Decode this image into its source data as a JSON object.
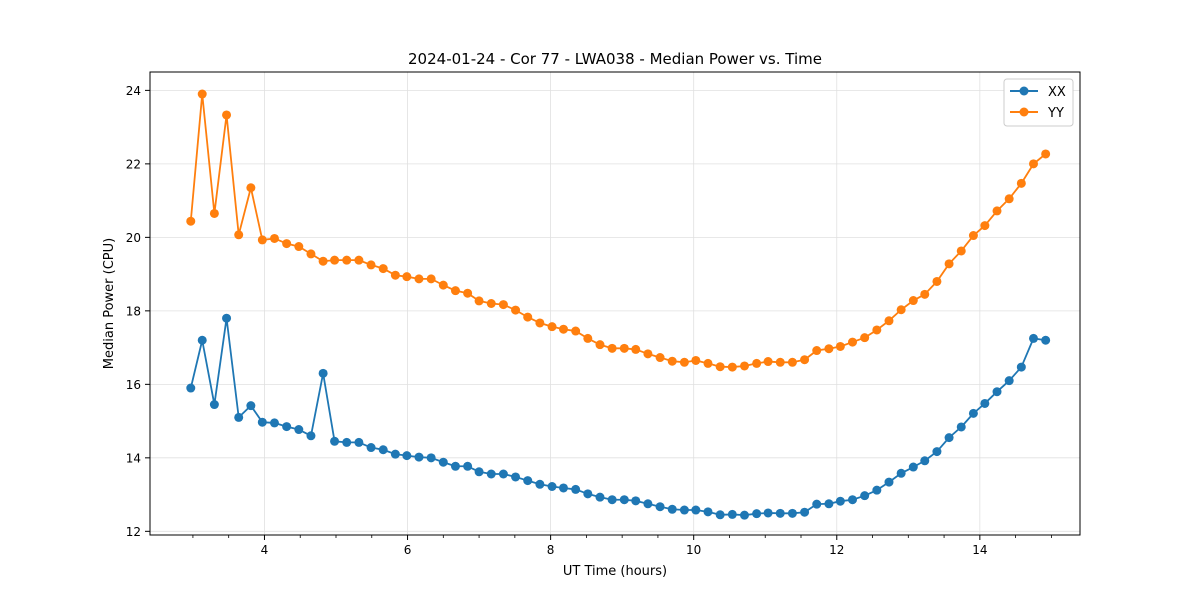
{
  "chart_data": {
    "type": "line",
    "title": "2024-01-24 - Cor 77 - LWA038 - Median Power vs. Time",
    "xlabel": "UT Time (hours)",
    "ylabel": "Median Power (CPU)",
    "xlim": [
      2.4,
      15.4
    ],
    "ylim": [
      11.9,
      24.5
    ],
    "xticks": [
      4,
      6,
      8,
      10,
      12,
      14
    ],
    "xtick_labels": [
      "4",
      "6",
      "8",
      "10",
      "12",
      "14"
    ],
    "yticks": [
      12,
      14,
      16,
      18,
      20,
      22,
      24
    ],
    "ytick_labels": [
      "12",
      "14",
      "16",
      "18",
      "20",
      "22",
      "24"
    ],
    "grid": true,
    "legend_position": "top-right",
    "x": [
      2.97,
      3.13,
      3.3,
      3.47,
      3.64,
      3.81,
      3.97,
      4.14,
      4.31,
      4.48,
      4.65,
      4.82,
      4.98,
      5.15,
      5.32,
      5.49,
      5.66,
      5.83,
      5.99,
      6.16,
      6.33,
      6.5,
      6.67,
      6.84,
      7.0,
      7.17,
      7.34,
      7.51,
      7.68,
      7.85,
      8.02,
      8.18,
      8.35,
      8.52,
      8.69,
      8.86,
      9.03,
      9.19,
      9.36,
      9.53,
      9.7,
      9.87,
      10.03,
      10.2,
      10.37,
      10.54,
      10.71,
      10.88,
      11.04,
      11.21,
      11.38,
      11.55,
      11.72,
      11.89,
      12.05,
      12.22,
      12.39,
      12.56,
      12.73,
      12.9,
      13.07,
      13.23,
      13.4,
      13.57,
      13.74,
      13.91,
      14.07,
      14.24,
      14.41,
      14.58,
      14.75,
      14.92
    ],
    "series": [
      {
        "name": "XX",
        "color": "#1f77b4",
        "values": [
          15.9,
          17.2,
          15.45,
          17.8,
          15.1,
          15.42,
          14.97,
          14.95,
          14.85,
          14.77,
          14.6,
          16.3,
          14.45,
          14.42,
          14.42,
          14.28,
          14.22,
          14.1,
          14.06,
          14.02,
          14.0,
          13.88,
          13.77,
          13.77,
          13.62,
          13.56,
          13.56,
          13.48,
          13.38,
          13.28,
          13.22,
          13.18,
          13.14,
          13.02,
          12.93,
          12.86,
          12.86,
          12.83,
          12.75,
          12.67,
          12.6,
          12.58,
          12.58,
          12.53,
          12.45,
          12.46,
          12.44,
          12.48,
          12.5,
          12.49,
          12.49,
          12.52,
          12.74,
          12.75,
          12.82,
          12.86,
          12.97,
          13.12,
          13.34,
          13.58,
          13.75,
          13.92,
          14.17,
          14.55,
          14.84,
          15.21,
          15.48,
          15.8,
          16.1,
          16.47,
          17.25,
          17.2
        ]
      },
      {
        "name": "YY",
        "color": "#ff7f0e",
        "values": [
          20.44,
          23.9,
          20.65,
          23.33,
          20.07,
          21.35,
          19.93,
          19.97,
          19.83,
          19.75,
          19.55,
          19.35,
          19.38,
          19.38,
          19.38,
          19.25,
          19.15,
          18.97,
          18.93,
          18.87,
          18.87,
          18.7,
          18.55,
          18.48,
          18.27,
          18.2,
          18.17,
          18.02,
          17.83,
          17.67,
          17.57,
          17.5,
          17.45,
          17.25,
          17.08,
          16.98,
          16.98,
          16.95,
          16.83,
          16.73,
          16.63,
          16.6,
          16.65,
          16.57,
          16.48,
          16.47,
          16.5,
          16.57,
          16.62,
          16.6,
          16.6,
          16.67,
          16.92,
          16.97,
          17.03,
          17.15,
          17.27,
          17.48,
          17.73,
          18.03,
          18.28,
          18.45,
          18.8,
          19.28,
          19.63,
          20.05,
          20.32,
          20.72,
          21.05,
          21.47,
          22.0,
          22.27
        ]
      }
    ]
  }
}
